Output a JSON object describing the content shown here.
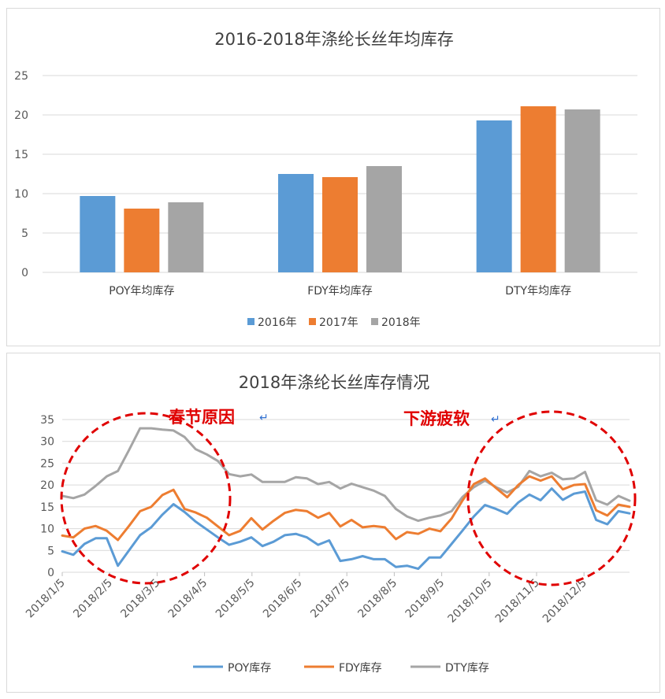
{
  "chart_data": [
    {
      "type": "bar",
      "title": "2016-2018年涤纶长丝年均库存",
      "categories": [
        "POY年均库存",
        "FDY年均库存",
        "DTY年均库存"
      ],
      "series": [
        {
          "name": "2016年",
          "color": "#5b9bd5",
          "values": [
            9.7,
            12.5,
            19.3
          ]
        },
        {
          "name": "2017年",
          "color": "#ed7d31",
          "values": [
            8.1,
            12.1,
            21.1
          ]
        },
        {
          "name": "2018年",
          "color": "#a5a5a5",
          "values": [
            8.9,
            13.5,
            20.7
          ]
        }
      ],
      "ylim": [
        0,
        25
      ],
      "yticks": [
        0,
        5,
        10,
        15,
        20,
        25
      ],
      "grid": true,
      "legend_position": "bottom"
    },
    {
      "type": "line",
      "title": "2018年涤纶长丝库存情况",
      "x_ticks": [
        "2018/1/5",
        "2018/2/5",
        "2018/3/5",
        "2018/4/5",
        "2018/5/5",
        "2018/6/5",
        "2018/7/5",
        "2018/8/5",
        "2018/9/5",
        "2018/10/5",
        "2018/11/5",
        "2018/12/5"
      ],
      "ylim": [
        0,
        35
      ],
      "yticks": [
        0,
        5,
        10,
        15,
        20,
        25,
        30,
        35
      ],
      "grid": true,
      "legend_position": "bottom",
      "series": [
        {
          "name": "POY库存",
          "color": "#5b9bd5",
          "values": [
            4.8,
            4.0,
            6.5,
            7.8,
            7.8,
            1.5,
            5.0,
            8.5,
            10.3,
            13.2,
            15.6,
            13.8,
            11.6,
            9.8,
            8.0,
            6.3,
            7.0,
            8.0,
            6.0,
            7.0,
            8.5,
            8.8,
            8.0,
            6.3,
            7.3,
            2.6,
            3.0,
            3.7,
            3.0,
            3.0,
            1.2,
            1.5,
            0.8,
            3.4,
            3.4,
            6.5,
            9.6,
            12.8,
            15.4,
            14.5,
            13.4,
            16.0,
            17.8,
            16.5,
            19.2,
            16.6,
            18.0,
            18.5,
            12.0,
            11.0,
            14.0,
            13.5
          ]
        },
        {
          "name": "FDY库存",
          "color": "#ed7d31",
          "values": [
            8.4,
            8.0,
            10.0,
            10.6,
            9.5,
            7.4,
            10.6,
            14.0,
            15.0,
            17.7,
            18.9,
            14.5,
            13.7,
            12.5,
            10.5,
            8.5,
            9.5,
            12.4,
            9.8,
            11.8,
            13.6,
            14.3,
            14.0,
            12.5,
            13.6,
            10.5,
            12.0,
            10.3,
            10.6,
            10.3,
            7.6,
            9.2,
            8.8,
            10.0,
            9.4,
            12.3,
            16.5,
            20.2,
            21.5,
            19.3,
            17.2,
            20.0,
            22.0,
            21.0,
            22.0,
            19.0,
            20.0,
            20.2,
            14.2,
            13.0,
            15.5,
            15.0
          ]
        },
        {
          "name": "DTY库存",
          "color": "#a5a5a5",
          "values": [
            17.5,
            17.0,
            17.8,
            19.8,
            22.0,
            23.2,
            28.0,
            33.0,
            33.0,
            32.7,
            32.5,
            31.0,
            28.2,
            27.0,
            25.5,
            22.5,
            22.0,
            22.4,
            20.7,
            20.7,
            20.7,
            21.8,
            21.5,
            20.2,
            20.7,
            19.2,
            20.3,
            19.5,
            18.7,
            17.5,
            14.5,
            12.8,
            11.8,
            12.5,
            13.0,
            14.0,
            17.3,
            19.5,
            21.0,
            19.5,
            18.3,
            19.6,
            23.2,
            22.0,
            22.8,
            21.3,
            21.5,
            23.0,
            16.5,
            15.5,
            17.5,
            16.4
          ]
        }
      ],
      "annotations": [
        "春节原因",
        "下游疲软"
      ]
    }
  ]
}
